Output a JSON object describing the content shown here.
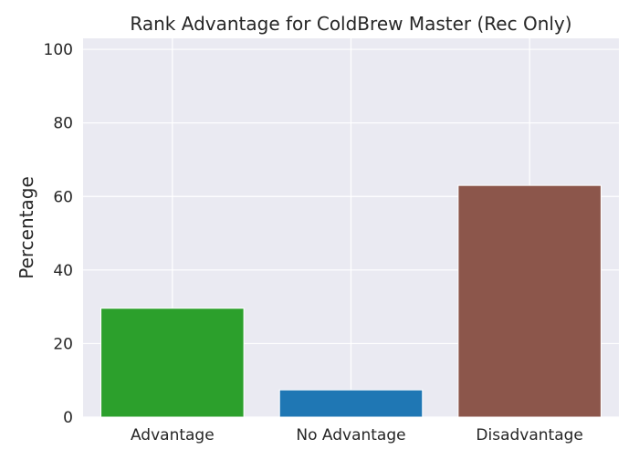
{
  "chart_data": {
    "type": "bar",
    "title": "Rank Advantage for ColdBrew Master (Rec Only)",
    "xlabel": "",
    "ylabel": "Percentage",
    "categories": [
      "Advantage",
      "No Advantage",
      "Disadvantage"
    ],
    "values": [
      29.6,
      7.4,
      63.0
    ],
    "colors": [
      "#2ca02c",
      "#1f77b4",
      "#8c564b"
    ],
    "ylim": [
      0,
      103
    ],
    "yticks": [
      0,
      20,
      40,
      60,
      80,
      100
    ],
    "grid": true,
    "background": "#eaeaf2",
    "grid_color": "#ffffff"
  }
}
